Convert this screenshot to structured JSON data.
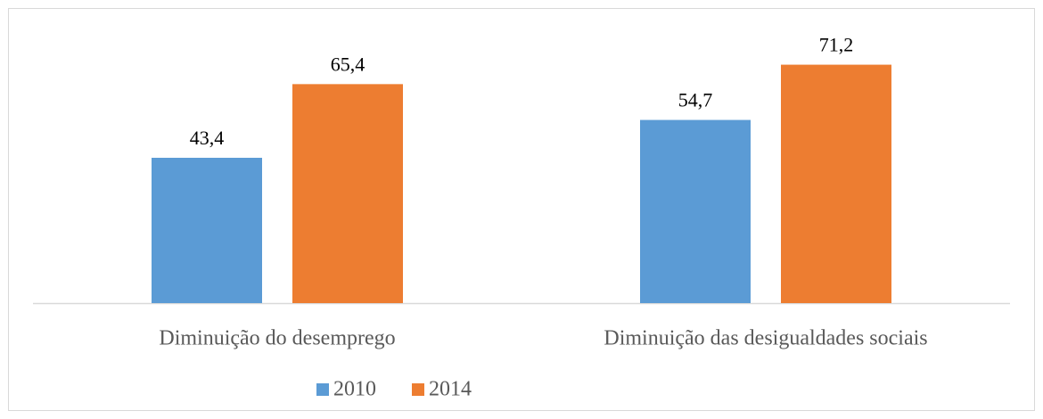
{
  "chart_data": {
    "type": "bar",
    "categories": [
      "Diminuição do desemprego",
      "Diminuição das desigualdades sociais"
    ],
    "series": [
      {
        "name": "2010",
        "color": "#5b9bd5",
        "values": [
          43.4,
          54.7
        ],
        "value_labels": [
          "43,4",
          "54,7"
        ]
      },
      {
        "name": "2014",
        "color": "#ed7d31",
        "values": [
          65.4,
          71.2
        ],
        "value_labels": [
          "65,4",
          "71,2"
        ]
      }
    ],
    "legend": "bottom"
  }
}
